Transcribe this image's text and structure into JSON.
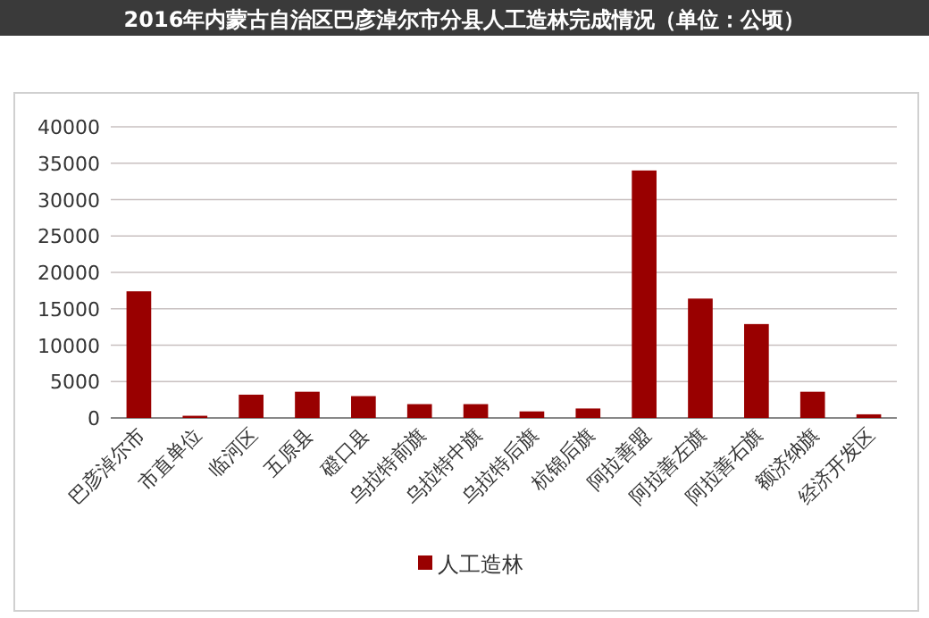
{
  "chart_data": {
    "type": "bar",
    "title": "2016年内蒙古自治区巴彦淖尔市分县人工造林完成情况（单位：公顷）",
    "categories": [
      "巴彦淖尔市",
      "市直单位",
      "临河区",
      "五原县",
      "磴口县",
      "乌拉特前旗",
      "乌拉特中旗",
      "乌拉特后旗",
      "杭锦后旗",
      "阿拉善盟",
      "阿拉善左旗",
      "阿拉善右旗",
      "额济纳旗",
      "经济开发区"
    ],
    "series": [
      {
        "name": "人工造林",
        "color": "#990000",
        "values": [
          17400,
          300,
          3200,
          3600,
          3000,
          1900,
          1900,
          900,
          1300,
          34000,
          16400,
          12900,
          3600,
          500
        ]
      }
    ],
    "ylim": [
      0,
      40000
    ],
    "yticks": [
      0,
      5000,
      10000,
      15000,
      20000,
      25000,
      30000,
      35000,
      40000
    ],
    "grid": "y",
    "legend": "bottom"
  }
}
